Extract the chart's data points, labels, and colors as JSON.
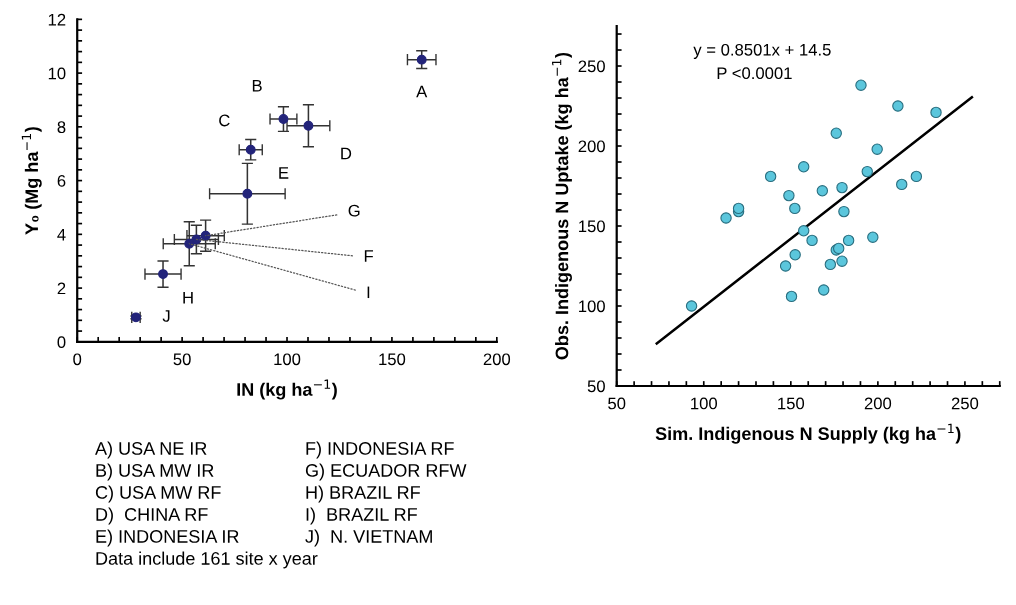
{
  "chart_data": [
    {
      "type": "scatter",
      "xlabel": "IN (kg ha$^{−1}$)",
      "ylabel": "Y₀ (Mg ha$^{−1}$)",
      "series": [
        {
          "color": "#23247a",
          "marker": "circle",
          "x": [
            164.2,
            98.3,
            82.7,
            110.2,
            81.1,
            56.8,
            61.2,
            40.9,
            53.4,
            28.0
          ],
          "values": [
            10.5,
            8.29,
            7.15,
            8.04,
            5.51,
            3.81,
            3.95,
            2.52,
            3.65,
            0.91
          ],
          "errors": [
            0.33,
            0.46,
            0.38,
            0.78,
            1.13,
            0.53,
            0.58,
            0.49,
            0.82,
            0.05
          ],
          "xerrors": [
            6.8,
            6.4,
            5.5,
            10.2,
            18,
            10.5,
            8.9,
            8.6,
            12.4,
            2
          ]
        }
      ],
      "xlim": [
        0,
        200
      ],
      "xticks": [
        0,
        {
          "value": 10,
          "label": null
        },
        {
          "value": 20,
          "label": null
        },
        {
          "value": 30,
          "label": null
        },
        {
          "value": 40,
          "label": null
        },
        50,
        {
          "value": 60,
          "label": null
        },
        {
          "value": 70,
          "label": null
        },
        {
          "value": 80,
          "label": null
        },
        {
          "value": 90,
          "label": null
        },
        100,
        {
          "value": 110,
          "label": null
        },
        {
          "value": 120,
          "label": null
        },
        {
          "value": 130,
          "label": null
        },
        {
          "value": 140,
          "label": null
        },
        150,
        {
          "value": 160,
          "label": null
        },
        {
          "value": 170,
          "label": null
        },
        {
          "value": 180,
          "label": null
        },
        {
          "value": 190,
          "label": null
        },
        200
      ],
      "ylim": [
        0,
        12
      ],
      "yticks": [
        0,
        {
          "value": 0.4,
          "label": null
        },
        {
          "value": 0.8,
          "label": null
        },
        {
          "value": 1.2,
          "label": null
        },
        {
          "value": 1.6,
          "label": null
        },
        2,
        {
          "value": 2.4,
          "label": null
        },
        {
          "value": 2.8,
          "label": null
        },
        {
          "value": 3.2,
          "label": null
        },
        {
          "value": 3.6,
          "label": null
        },
        4,
        {
          "value": 4.4,
          "label": null
        },
        {
          "value": 4.8,
          "label": null
        },
        {
          "value": 5.2,
          "label": null
        },
        {
          "value": 5.6,
          "label": null
        },
        6,
        {
          "value": 6.4,
          "label": null
        },
        {
          "value": 6.8,
          "label": null
        },
        {
          "value": 7.2,
          "label": null
        },
        {
          "value": 7.6,
          "label": null
        },
        8,
        {
          "value": 8.4,
          "label": null
        },
        {
          "value": 8.8,
          "label": null
        },
        {
          "value": 9.2,
          "label": null
        },
        {
          "value": 9.6,
          "label": null
        },
        10,
        {
          "value": 10.4,
          "label": null
        },
        {
          "value": 10.8,
          "label": null
        },
        {
          "value": 11.2,
          "label": null
        },
        {
          "value": 11.6,
          "label": null
        },
        12
      ],
      "grid": false,
      "legend": false,
      "annotations": [
        {
          "text": "A",
          "x": 164.2,
          "y": 10.5
        },
        {
          "text": "B",
          "x": 98.3,
          "y": 8.29
        },
        {
          "text": "C",
          "x": 82.7,
          "y": 7.15
        },
        {
          "text": "D",
          "x": 110.2,
          "y": 8.04
        },
        {
          "text": "E",
          "x": 81.1,
          "y": 5.51
        },
        {
          "text": "F",
          "x": 56.8,
          "y": 3.81
        },
        {
          "text": "G",
          "x": 61.2,
          "y": 3.95
        },
        {
          "text": "H",
          "x": 40.9,
          "y": 2.52
        },
        {
          "text": "I",
          "x": 53.4,
          "y": 3.65
        },
        {
          "text": "J",
          "x": 28.0,
          "y": 0.91
        },
        "A) USA NE IR",
        "B) USA MW IR",
        "C) USA MW RF",
        "D)  CHINA RF",
        "E) INDONESIA IR",
        "F) INDONESIA RF",
        "G) ECUADOR RFW",
        "H) BRAZIL RF",
        "I)  BRAZIL RF",
        "J)  N. VIETNAM",
        "Data include 161 site x year"
      ]
    },
    {
      "type": "scatter",
      "xlabel": "Sim. Indigenous N Supply (kg ha$^{−1}$)",
      "ylabel": "Obs. Indigenous N Uptake (kg ha$^{−1}$)",
      "series": [
        {
          "type": "scatter",
          "color": "#5bc6dc",
          "marker": "circle",
          "x": [
            93,
            112.8,
            120,
            120,
            138.4,
            148.9,
            152.3,
            157.4,
            157.4,
            162.2,
            147,
            152.5,
            150.4,
            168.1,
            168.9,
            172.7,
            176.1,
            176.1,
            177.5,
            179.4,
            179.4,
            180.5,
            183.2,
            190.3,
            193.9,
            197.1,
            199.6,
            211.5,
            213.7,
            222.1,
            233.4
          ],
          "values": [
            100,
            155,
            159,
            161,
            181,
            169,
            161,
            187,
            147,
            141,
            125,
            132,
            106,
            172,
            110,
            126,
            208,
            135,
            136,
            174,
            128,
            159,
            141,
            238,
            184,
            143,
            198,
            225,
            176,
            181,
            221
          ]
        },
        {
          "type": "line",
          "color": "#000000",
          "marker": "none",
          "x": [
            73,
            254
          ],
          "values": [
            76.6,
            230.4
          ]
        }
      ],
      "xlim": [
        50,
        270
      ],
      "xticks": [
        50,
        {
          "value": 60,
          "label": null
        },
        {
          "value": 70,
          "label": null
        },
        {
          "value": 80,
          "label": null
        },
        {
          "value": 90,
          "label": null
        },
        100,
        {
          "value": 110,
          "label": null
        },
        {
          "value": 120,
          "label": null
        },
        {
          "value": 130,
          "label": null
        },
        {
          "value": 140,
          "label": null
        },
        150,
        {
          "value": 160,
          "label": null
        },
        {
          "value": 170,
          "label": null
        },
        {
          "value": 180,
          "label": null
        },
        {
          "value": 190,
          "label": null
        },
        200,
        {
          "value": 210,
          "label": null
        },
        {
          "value": 220,
          "label": null
        },
        {
          "value": 230,
          "label": null
        },
        {
          "value": 240,
          "label": null
        },
        250,
        {
          "value": 260,
          "label": null
        },
        {
          "value": 270,
          "label": null
        }
      ],
      "ylim": [
        50,
        275
      ],
      "yticks": [
        50,
        {
          "value": 60,
          "label": null
        },
        {
          "value": 70,
          "label": null
        },
        {
          "value": 80,
          "label": null
        },
        {
          "value": 90,
          "label": null
        },
        100,
        {
          "value": 110,
          "label": null
        },
        {
          "value": 120,
          "label": null
        },
        {
          "value": 130,
          "label": null
        },
        {
          "value": 140,
          "label": null
        },
        150,
        {
          "value": 160,
          "label": null
        },
        {
          "value": 170,
          "label": null
        },
        {
          "value": 180,
          "label": null
        },
        {
          "value": 190,
          "label": null
        },
        200,
        {
          "value": 210,
          "label": null
        },
        {
          "value": 220,
          "label": null
        },
        {
          "value": 230,
          "label": null
        },
        {
          "value": 240,
          "label": null
        },
        250,
        {
          "value": 260,
          "label": null
        },
        {
          "value": 270,
          "label": null
        }
      ],
      "grid": false,
      "legend": false,
      "annotations": [
        "y = 0.8501x + 14.5",
        "P <0.0001"
      ]
    }
  ]
}
